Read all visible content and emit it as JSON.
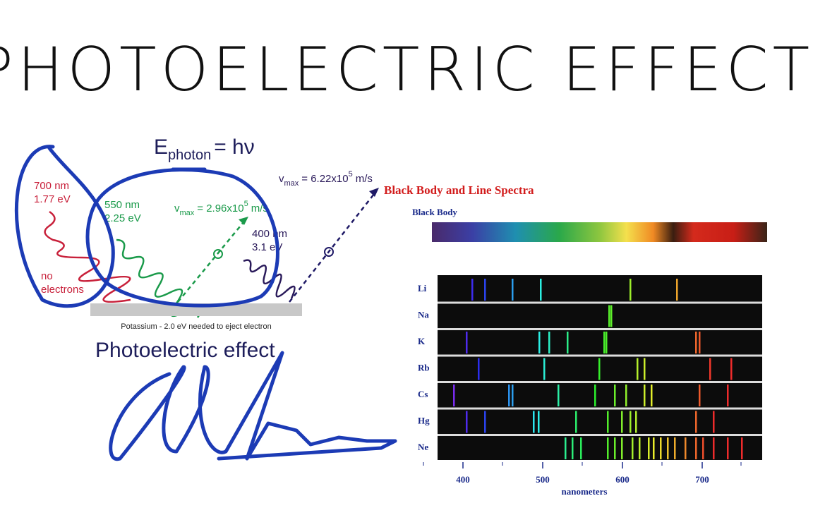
{
  "header": {
    "title": "PHOTOELECTRIC EFFECT"
  },
  "photon_diagram": {
    "energy_formula": {
      "symbol": "E",
      "subscript": "photon",
      "rest": "= hν"
    },
    "red_photon": {
      "wavelength": "700 nm",
      "energy": "1.77 eV",
      "note_line1": "no",
      "note_line2": "electrons"
    },
    "green_photon": {
      "wavelength": "550 nm",
      "energy": "2.25 eV",
      "speed": {
        "symbol": "v",
        "subscript": "max",
        "rest": "= 2.96x10",
        "exponent": "5",
        "unit": "m/s"
      }
    },
    "violet_photon": {
      "wavelength": "400 nm",
      "energy": "3.1 eV",
      "speed": {
        "symbol": "v",
        "subscript": "max",
        "rest": "= 6.22x10",
        "exponent": "5",
        "unit": "m/s"
      }
    },
    "surface_caption": "Potassium - 2.0 eV needed to eject electron",
    "caption": "Photoelectric effect"
  },
  "spectra": {
    "title": "Black Body and Line Spectra",
    "black_body_label": "Black Body",
    "elements": [
      "Li",
      "Na",
      "K",
      "Rb",
      "Cs",
      "Hg",
      "Ne"
    ],
    "ticks": [
      400,
      500,
      600,
      700
    ],
    "axis_label": "nanometers"
  }
}
